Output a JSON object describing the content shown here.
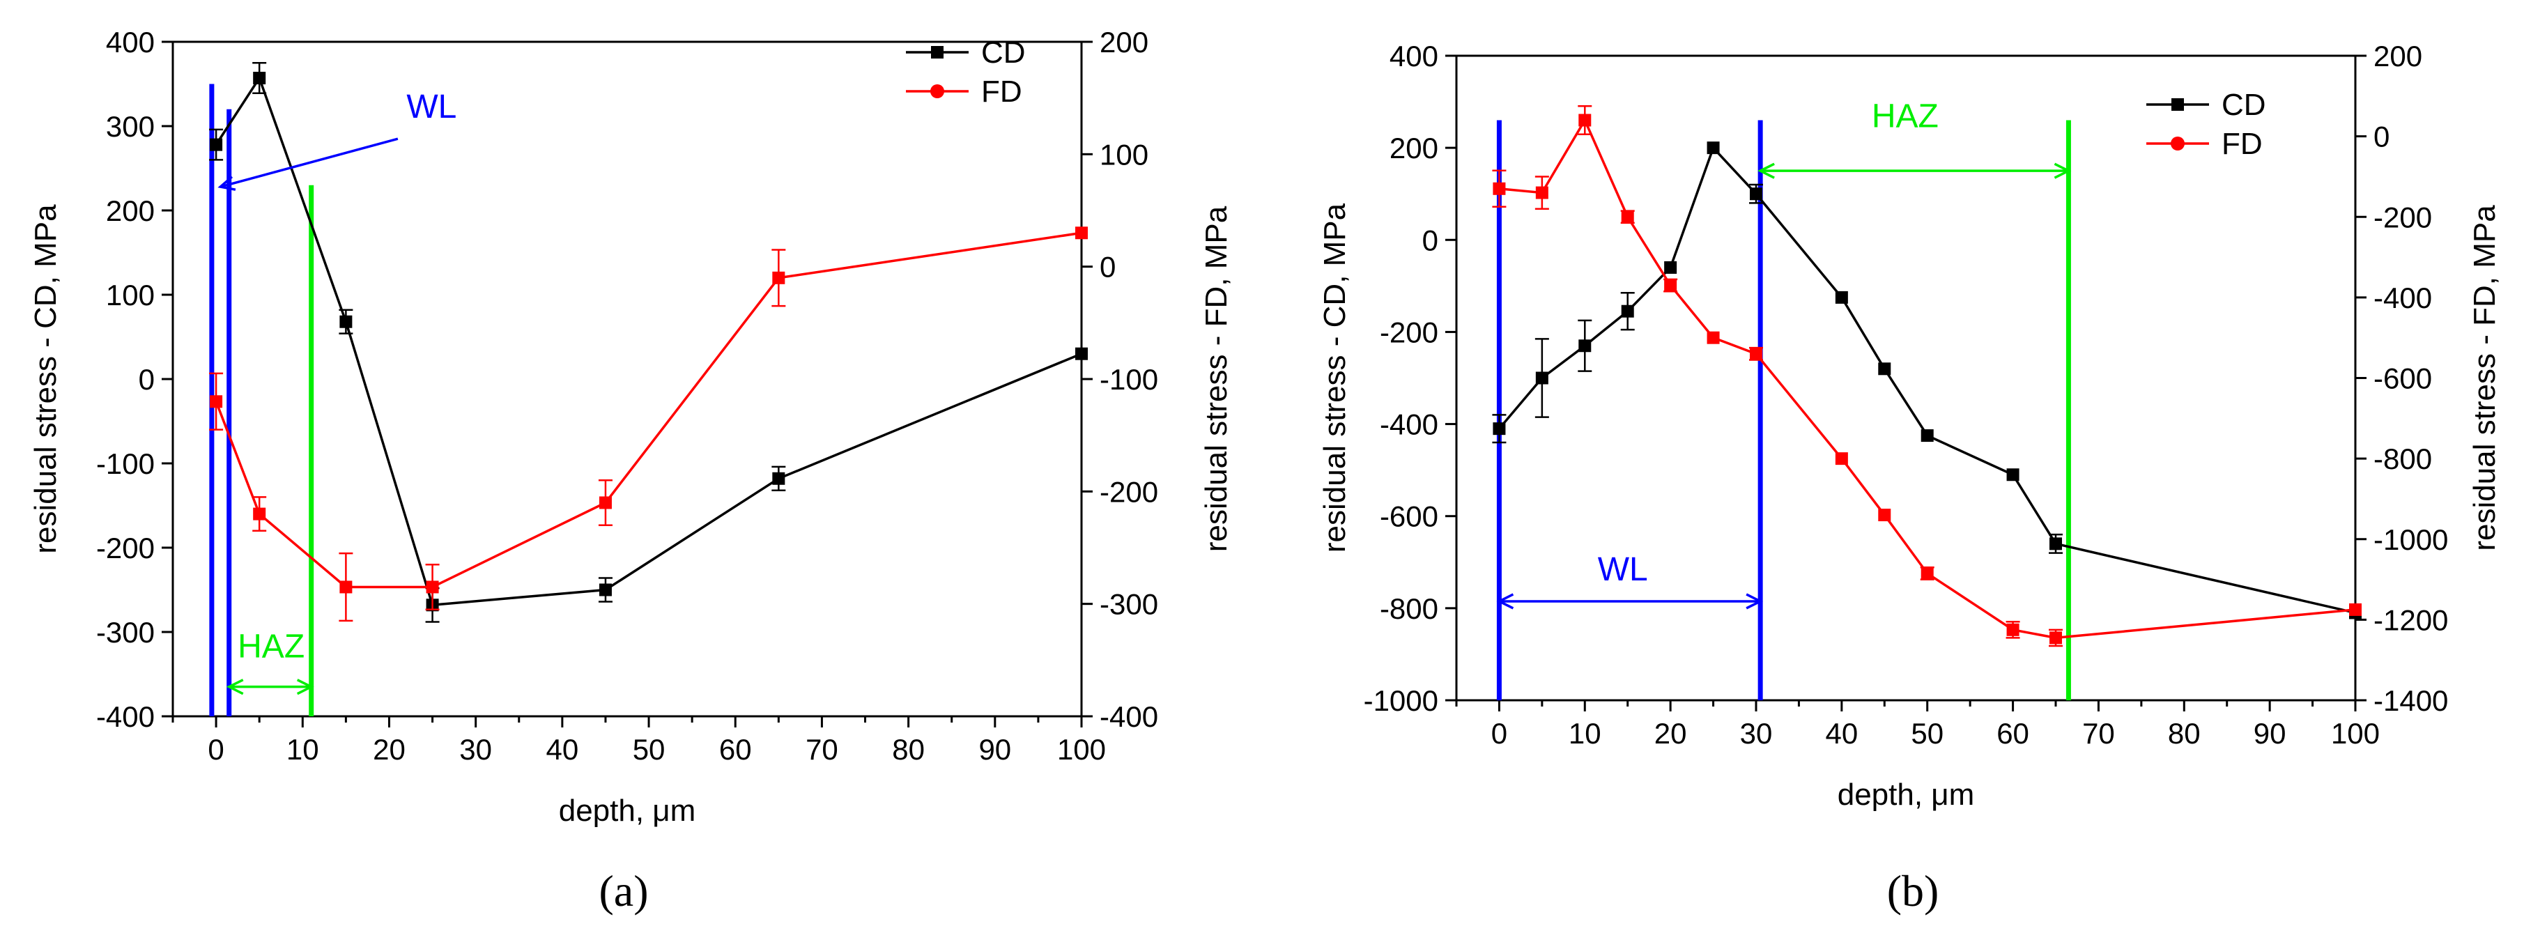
{
  "chart_data": [
    {
      "panel_label": "(a)",
      "type": "line",
      "xlabel": "depth, μm",
      "ylabel_left": "residual stress - CD, MPa",
      "ylabel_right": "residual stress - FD, MPa",
      "xlim": [
        -5,
        100
      ],
      "xticks": [
        0,
        10,
        20,
        30,
        40,
        50,
        60,
        70,
        80,
        90,
        100
      ],
      "ylim_left": [
        -400,
        400
      ],
      "yticks_left": [
        -400,
        -300,
        -200,
        -100,
        0,
        100,
        200,
        300,
        400
      ],
      "ylim_right": [
        -400,
        200
      ],
      "yticks_right": [
        -400,
        -300,
        -200,
        -100,
        0,
        100,
        200
      ],
      "series": [
        {
          "name": "CD",
          "color": "#000000",
          "marker": "square",
          "axis": "left",
          "x": [
            0,
            5,
            15,
            25,
            45,
            65,
            100
          ],
          "y": [
            278,
            357,
            68,
            -268,
            -250,
            -118,
            30
          ],
          "err": [
            18,
            18,
            14,
            20,
            14,
            14,
            0
          ]
        },
        {
          "name": "FD",
          "color": "#ff0000",
          "marker": "circle",
          "axis": "right",
          "x": [
            0,
            5,
            15,
            25,
            45,
            65,
            100
          ],
          "y": [
            -120,
            -220,
            -285,
            -285,
            -210,
            -10,
            30
          ],
          "err": [
            25,
            15,
            30,
            20,
            20,
            25,
            0
          ]
        }
      ],
      "vlines": [
        {
          "x": -0.5,
          "color": "#0000ff",
          "y_from": -400,
          "y_to": 350
        },
        {
          "x": 1.5,
          "color": "#0000ff",
          "y_from": -400,
          "y_to": 320
        },
        {
          "x": 11,
          "color": "#00ee00",
          "y_from": -400,
          "y_to": 230
        }
      ],
      "annotations": [
        {
          "text": "WL",
          "color": "#0000ff",
          "kind": "pointer",
          "text_x": 22,
          "text_y": 310,
          "from_x": 21,
          "from_y": 285,
          "to_x": 0.5,
          "to_y": 228
        },
        {
          "text": "HAZ",
          "color": "#00ee00",
          "kind": "span",
          "text_x": 2.5,
          "text_y": -330,
          "from_x": 1.5,
          "to_x": 11,
          "y": -365
        }
      ],
      "legend": {
        "placement": "top-right",
        "entries": [
          "CD",
          "FD"
        ]
      }
    },
    {
      "panel_label": "(b)",
      "type": "line",
      "xlabel": "depth, μm",
      "ylabel_left": "residual stress - CD, MPa",
      "ylabel_right": "residual stress - FD, MPa",
      "xlim": [
        -5,
        100
      ],
      "xticks": [
        0,
        10,
        20,
        30,
        40,
        50,
        60,
        70,
        80,
        90,
        100
      ],
      "ylim_left": [
        -1000,
        400
      ],
      "yticks_left": [
        -1000,
        -800,
        -600,
        -400,
        -200,
        0,
        200,
        400
      ],
      "ylim_right": [
        -1400,
        200
      ],
      "yticks_right": [
        -1400,
        -1200,
        -1000,
        -800,
        -600,
        -400,
        -200,
        0,
        200
      ],
      "series": [
        {
          "name": "CD",
          "color": "#000000",
          "marker": "square",
          "axis": "left",
          "x": [
            0,
            5,
            10,
            15,
            20,
            25,
            30,
            40,
            45,
            50,
            60,
            65,
            100
          ],
          "y": [
            -410,
            -300,
            -230,
            -155,
            -60,
            200,
            100,
            -125,
            -280,
            -425,
            -510,
            -660,
            -810
          ],
          "err": [
            30,
            85,
            55,
            40,
            0,
            0,
            20,
            0,
            0,
            0,
            0,
            20,
            0
          ]
        },
        {
          "name": "FD",
          "color": "#ff0000",
          "marker": "circle",
          "axis": "right",
          "x": [
            0,
            5,
            10,
            15,
            20,
            25,
            30,
            40,
            45,
            50,
            60,
            65,
            100
          ],
          "y": [
            -130,
            -140,
            40,
            -200,
            -370,
            -500,
            -540,
            -800,
            -940,
            -1085,
            -1225,
            -1245,
            -1175
          ],
          "err": [
            45,
            40,
            35,
            15,
            15,
            0,
            15,
            0,
            0,
            15,
            20,
            20,
            0
          ]
        }
      ],
      "vlines": [
        {
          "x": 0,
          "color": "#0000ff",
          "y_from": -1000,
          "y_to": 260
        },
        {
          "x": 30.5,
          "color": "#0000ff",
          "y_from": -1000,
          "y_to": 260
        },
        {
          "x": 66.5,
          "color": "#00ee00",
          "y_from": -1000,
          "y_to": 260
        }
      ],
      "annotations": [
        {
          "text": "WL",
          "color": "#0000ff",
          "kind": "span",
          "text_x": 11.5,
          "text_y": -740,
          "from_x": 0,
          "to_x": 30.5,
          "y": -785
        },
        {
          "text": "HAZ",
          "color": "#00ee00",
          "kind": "span",
          "text_x": 43.5,
          "text_y": 245,
          "from_x": 30.5,
          "to_x": 66.5,
          "y": 150
        }
      ],
      "legend": {
        "placement": "top-right",
        "entries": [
          "CD",
          "FD"
        ]
      }
    }
  ]
}
